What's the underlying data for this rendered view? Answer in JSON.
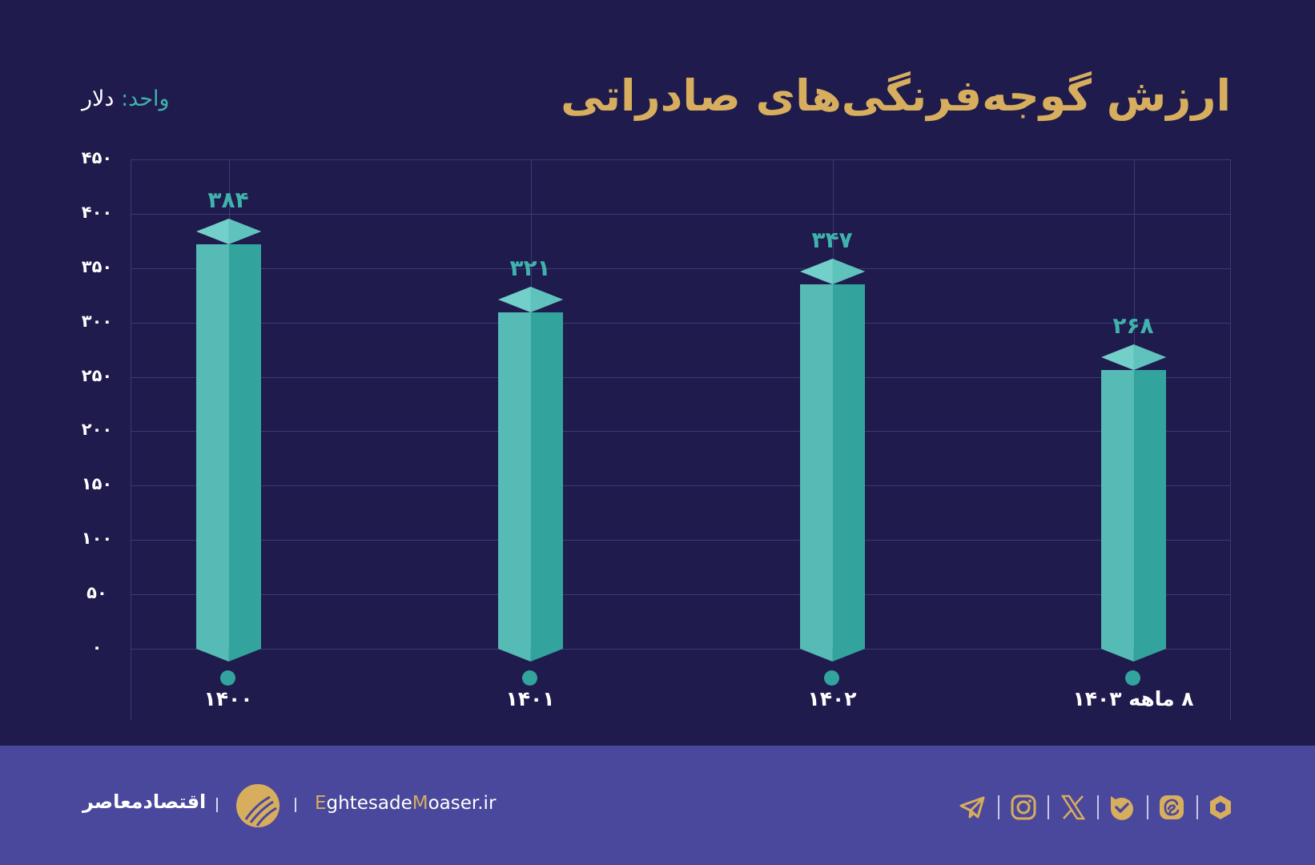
{
  "header": {
    "title": "ارزش گوجه‌فرنگی‌های صادراتی",
    "unit_key": "واحد:",
    "unit_value": "دلار"
  },
  "colors": {
    "background": "#1f1b4d",
    "footer": "#4a489c",
    "title": "#d7ad5e",
    "bar_light": "#56bab5",
    "bar_dark": "#33a39d",
    "value_label": "#3fb3ab",
    "grid": "#3d3a72"
  },
  "axis": {
    "y_ticks": [
      "۰",
      "۵۰",
      "۱۰۰",
      "۱۵۰",
      "۲۰۰",
      "۲۵۰",
      "۳۰۰",
      "۳۵۰",
      "۴۰۰",
      "۴۵۰"
    ],
    "x_labels": [
      "۱۴۰۰",
      "۱۴۰۱",
      "۱۴۰۲",
      "۸ ماهه ۱۴۰۳"
    ]
  },
  "bars": [
    {
      "label": "۱۴۰۰",
      "value_label": "۳۸۴"
    },
    {
      "label": "۱۴۰۱",
      "value_label": "۳۲۱"
    },
    {
      "label": "۱۴۰۲",
      "value_label": "۳۴۷"
    },
    {
      "label": "۸ ماهه ۱۴۰۳",
      "value_label": "۲۶۸"
    }
  ],
  "chart_data": {
    "type": "bar",
    "title": "ارزش گوجه‌فرنگی‌های صادراتی",
    "xlabel": "",
    "ylabel": "واحد: دلار",
    "categories": [
      "۱۴۰۰",
      "۱۴۰۱",
      "۱۴۰۲",
      "۸ ماهه ۱۴۰۳"
    ],
    "values": [
      384,
      321,
      347,
      268
    ],
    "ylim": [
      0,
      450
    ],
    "yticks": [
      0,
      50,
      100,
      150,
      200,
      250,
      300,
      350,
      400,
      450
    ],
    "grid": true,
    "legend": "none"
  },
  "footer": {
    "brand_fa": "اقتصادمعاصر",
    "site_parts": [
      "E",
      "ghtesade",
      "M",
      "oaser.ir"
    ],
    "social_icons": [
      "telegram-icon",
      "instagram-icon",
      "x-icon",
      "bale-icon",
      "eitaa-icon",
      "rubika-icon"
    ]
  }
}
